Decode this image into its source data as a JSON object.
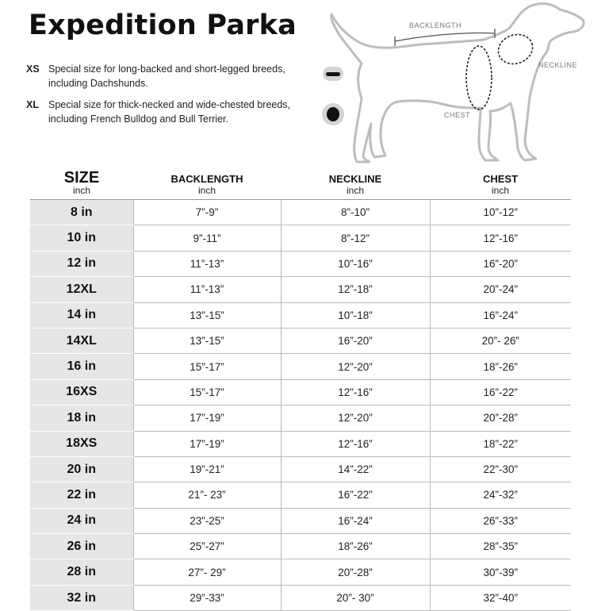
{
  "title": "Expedition Parka",
  "notes": [
    {
      "code": "XS",
      "text": "Special size for long-backed and short-legged breeds, including Dachshunds."
    },
    {
      "code": "XL",
      "text": "Special size for thick-necked and wide-chested breeds, including French Bulldog and Bull Terrier."
    }
  ],
  "diagram": {
    "backlength_label": "BACKLENGTH",
    "neckline_label": "NECKLINE",
    "chest_label": "CHEST"
  },
  "table": {
    "headers": [
      {
        "label": "SIZE",
        "unit": "inch"
      },
      {
        "label": "BACKLENGTH",
        "unit": "inch"
      },
      {
        "label": "NECKLINE",
        "unit": "inch"
      },
      {
        "label": "CHEST",
        "unit": "inch"
      }
    ],
    "rows": [
      [
        "8 in",
        "7”-9”",
        "8”-10”",
        "10”-12”"
      ],
      [
        "10 in",
        "9”-11”",
        "8”-12”",
        "12”-16”"
      ],
      [
        "12 in",
        "11”-13”",
        "10”-16”",
        "16”-20”"
      ],
      [
        "12XL",
        "11”-13”",
        "12”-18”",
        "20”-24”"
      ],
      [
        "14 in",
        "13”-15”",
        "10”-18”",
        "16”-24”"
      ],
      [
        "14XL",
        "13”-15”",
        "16”-20”",
        "20”- 26”"
      ],
      [
        "16 in",
        "15”-17”",
        "12”-20”",
        "18”-26”"
      ],
      [
        "16XS",
        "15”-17”",
        "12”-16”",
        "16”-22”"
      ],
      [
        "18 in",
        "17”-19”",
        "12”-20”",
        "20”-28”"
      ],
      [
        "18XS",
        "17”-19”",
        "12”-16”",
        "18”-22”"
      ],
      [
        "20 in",
        "19”-21”",
        "14”-22”",
        "22”-30”"
      ],
      [
        "22 in",
        "21”- 23”",
        "16”-22”",
        "24”-32”"
      ],
      [
        "24 in",
        "23”-25”",
        "16”-24”",
        "26”-33”"
      ],
      [
        "26 in",
        "25”-27”",
        "18”-26”",
        "28”-35”"
      ],
      [
        "28 in",
        "27”- 29”",
        "20”-28”",
        "30”-39”"
      ],
      [
        "32 in",
        "29”-33”",
        "20”- 30”",
        "32”-40”"
      ]
    ]
  }
}
